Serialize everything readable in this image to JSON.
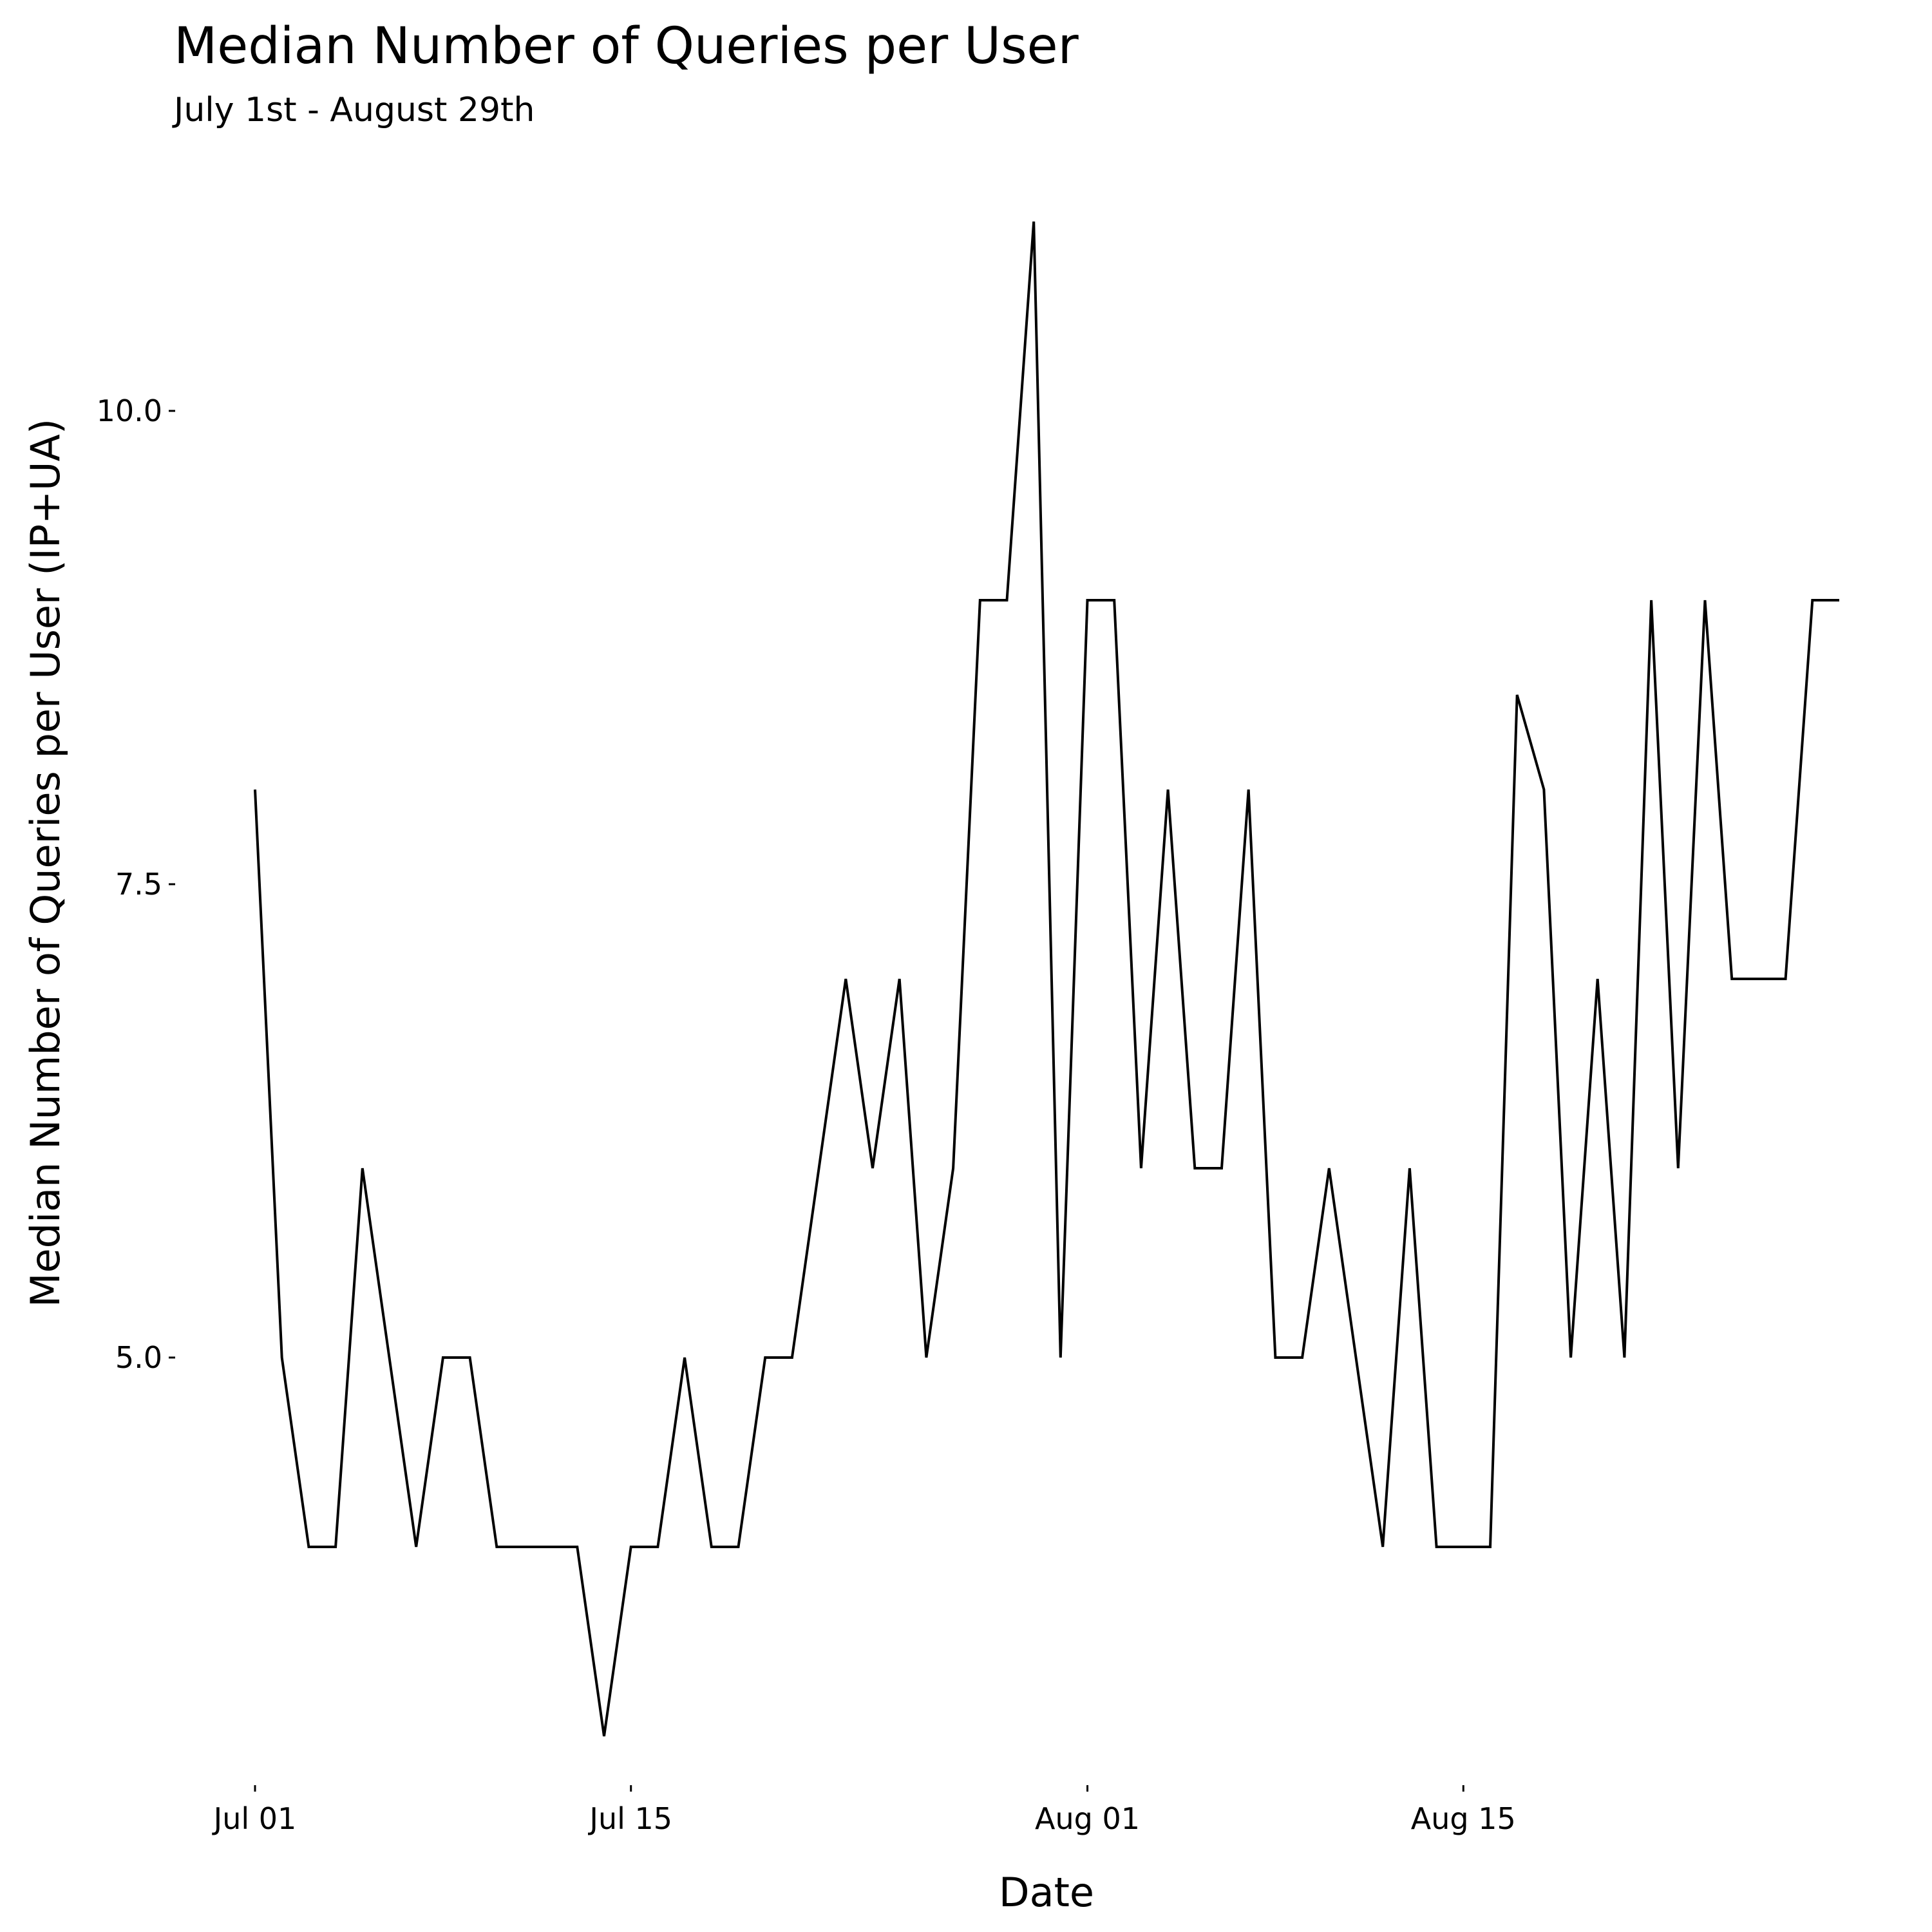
{
  "chart_data": {
    "type": "line",
    "title": "Median Number of Queries per User",
    "subtitle": "July 1st - August 29th",
    "xlabel": "Date",
    "ylabel": "Median Number of Queries per User (IP+UA)",
    "x_ticks": [
      {
        "date": "2015-07-01",
        "label": "Jul 01"
      },
      {
        "date": "2015-07-15",
        "label": "Jul 15"
      },
      {
        "date": "2015-08-01",
        "label": "Aug 01"
      },
      {
        "date": "2015-08-15",
        "label": "Aug 15"
      }
    ],
    "y_ticks": [
      {
        "value": 5.0,
        "label": "5.0"
      },
      {
        "value": 7.5,
        "label": "7.5"
      },
      {
        "value": 10.0,
        "label": "10.0"
      }
    ],
    "xlim": [
      "2015-07-01",
      "2015-08-29"
    ],
    "ylim": [
      3,
      11
    ],
    "grid": false,
    "legend": "none",
    "line_color": "#000000",
    "series": [
      {
        "x": [
          "2015-07-01",
          "2015-07-02",
          "2015-07-03",
          "2015-07-04",
          "2015-07-05",
          "2015-07-06",
          "2015-07-07",
          "2015-07-08",
          "2015-07-09",
          "2015-07-10",
          "2015-07-11",
          "2015-07-12",
          "2015-07-13",
          "2015-07-14",
          "2015-07-15",
          "2015-07-16",
          "2015-07-17",
          "2015-07-18",
          "2015-07-19",
          "2015-07-20",
          "2015-07-21",
          "2015-07-22",
          "2015-07-23",
          "2015-07-24",
          "2015-07-25",
          "2015-07-26",
          "2015-07-27",
          "2015-07-28",
          "2015-07-29",
          "2015-07-30",
          "2015-07-31",
          "2015-08-01",
          "2015-08-02",
          "2015-08-03",
          "2015-08-04",
          "2015-08-05",
          "2015-08-06",
          "2015-08-07",
          "2015-08-08",
          "2015-08-09",
          "2015-08-10",
          "2015-08-11",
          "2015-08-12",
          "2015-08-13",
          "2015-08-14",
          "2015-08-15",
          "2015-08-16",
          "2015-08-17",
          "2015-08-18",
          "2015-08-19",
          "2015-08-20",
          "2015-08-21",
          "2015-08-22",
          "2015-08-23",
          "2015-08-24",
          "2015-08-25",
          "2015-08-26",
          "2015-08-27",
          "2015-08-28",
          "2015-08-29"
        ],
        "values": [
          8,
          5,
          4,
          4,
          6,
          5,
          4,
          5,
          5,
          4,
          4,
          4,
          4,
          3,
          4,
          4,
          5,
          4,
          4,
          5,
          5,
          6,
          7,
          6,
          7,
          5,
          6,
          9,
          9,
          11,
          5,
          9,
          9,
          6,
          8,
          6,
          6,
          8,
          5,
          5,
          6,
          5,
          4,
          6,
          4,
          4,
          4,
          8.5,
          8,
          5,
          7,
          5,
          9,
          6,
          9,
          7,
          7,
          7,
          9,
          9
        ]
      }
    ]
  }
}
